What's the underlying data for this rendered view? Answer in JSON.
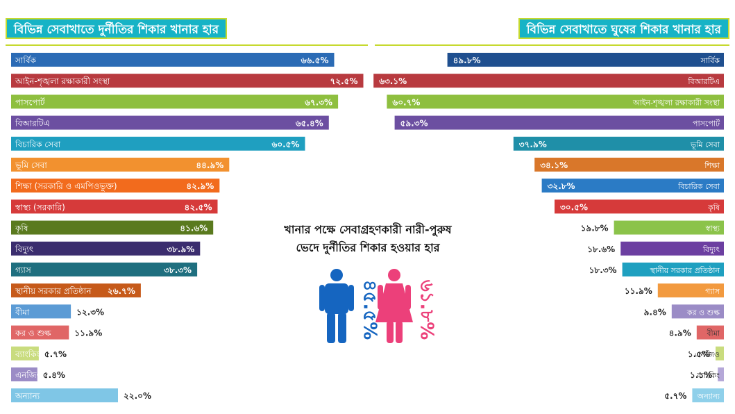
{
  "left_title": "বিভিন্ন সেবাখাতে দুর্নীতির শিকার খানার হার",
  "right_title": "বিভিন্ন সেবাখাতে ঘুষের শিকার খানার হার",
  "center": {
    "title_line1": "খানার পক্ষে সেবাগ্রহণকারী নারী-পুরুষ",
    "title_line2": "ভেদে দুর্নীতির শিকার হওয়ার হার",
    "male_value": "৪৫.৫%",
    "female_value": "৬১.৮%",
    "male_color": "#1565c0",
    "female_color": "#ec407a"
  },
  "chart_data": [
    {
      "type": "bar",
      "orientation": "horizontal",
      "title": "বিভিন্ন সেবাখাতে দুর্নীতির শিকার খানার হার",
      "categories": [
        "সার্বিক",
        "আইন-শৃঙ্খলা রক্ষাকারী সংস্থা",
        "পাসপোর্ট",
        "বিআরটিএ",
        "বিচারিক সেবা",
        "ভূমি সেবা",
        "শিক্ষা (সরকারি ও এমপিওভুক্ত)",
        "স্বাস্থ্য (সরকারি)",
        "কৃষি",
        "বিদ্যুৎ",
        "গ্যাস",
        "স্থানীয় সরকার প্রতিষ্ঠান",
        "বীমা",
        "কর ও শুল্ক",
        "ব্যাংকিং",
        "এনজিও",
        "অন্যান্য"
      ],
      "values": [
        66.5,
        72.5,
        67.3,
        65.4,
        60.5,
        44.9,
        42.9,
        42.5,
        41.6,
        38.9,
        38.3,
        26.7,
        12.3,
        11.9,
        5.7,
        5.4,
        22.0
      ],
      "value_labels": [
        "৬৬.৫%",
        "৭২.৫%",
        "৬৭.৩%",
        "৬৫.৪%",
        "৬০.৫%",
        "৪৪.৯%",
        "৪২.৯%",
        "৪২.৫%",
        "৪১.৬%",
        "৩৮.৯%",
        "৩৮.৩%",
        "২৬.৭%",
        "১২.৩%",
        "১১.৯%",
        "৫.৭%",
        "৫.৪%",
        "২২.০%"
      ],
      "colors": [
        "#2b6bb5",
        "#b83a3f",
        "#8ebf3f",
        "#6c4fa1",
        "#1f9fc0",
        "#f2912f",
        "#f26b1d",
        "#d63a3a",
        "#5a7a1e",
        "#3b2d6e",
        "#1f6f7f",
        "#c65a1a",
        "#5b9bd5",
        "#e06666",
        "#c9dc7e",
        "#9b8cc6",
        "#7fc6e6"
      ]
    },
    {
      "type": "bar",
      "orientation": "horizontal",
      "title": "বিভিন্ন সেবাখাতে ঘুষের শিকার খানার হার",
      "categories": [
        "সার্বিক",
        "বিআরটিএ",
        "আইন-শৃঙ্খলা রক্ষাকারী সংস্থা",
        "পাসপোর্ট",
        "ভূমি সেবা",
        "শিক্ষা",
        "বিচারিক সেবা",
        "কৃষি",
        "স্বাস্থ্য",
        "বিদ্যুৎ",
        "স্থানীয় সরকার প্রতিষ্ঠান",
        "গ্যাস",
        "কর ও শুল্ক",
        "বীমা",
        "এনজিও",
        "ব্যাংকিং",
        "অন্যান্য"
      ],
      "values": [
        49.8,
        63.1,
        60.7,
        59.3,
        37.9,
        34.1,
        32.8,
        30.5,
        19.8,
        18.6,
        18.3,
        11.9,
        9.4,
        4.9,
        1.5,
        1.1,
        5.7
      ],
      "value_labels": [
        "৪৯.৮%",
        "৬৩.১%",
        "৬০.৭%",
        "৫৯.৩%",
        "৩৭.৯%",
        "৩৪.১%",
        "৩২.৮%",
        "৩০.৫%",
        "১৯.৮%",
        "১৮.৬%",
        "১৮.৩%",
        "১১.৯%",
        "৯.৪%",
        "৪.৯%",
        "১.৫%",
        "১.১%",
        "৫.৭%"
      ],
      "colors": [
        "#1f4f8f",
        "#b83a3f",
        "#8ebf3f",
        "#6c4fa1",
        "#1f8fa8",
        "#d9772a",
        "#2b7bc5",
        "#d63a3a",
        "#8bc34a",
        "#6c3fa1",
        "#1fa0c0",
        "#f29a3f",
        "#9b8cc6",
        "#e06666",
        "#c9dc7e",
        "#b5a8d8",
        "#8fd0ea"
      ]
    }
  ]
}
